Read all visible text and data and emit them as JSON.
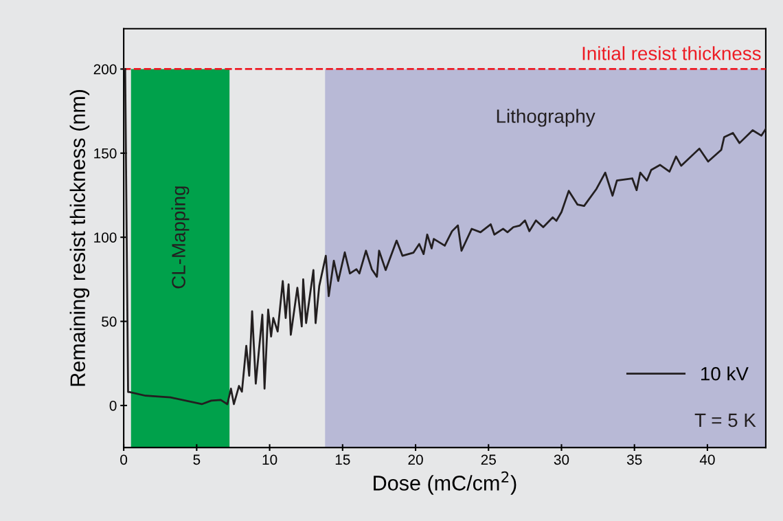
{
  "chart_data": {
    "type": "line",
    "xlabel": "Dose (mC/cm$^{2}$)",
    "ylabel": "Remaining resist thickness (nm)",
    "xlim": [
      0,
      44
    ],
    "ylim": [
      -25,
      224
    ],
    "xticks": [
      0,
      5,
      10,
      15,
      20,
      25,
      30,
      35,
      40
    ],
    "yticks": [
      0,
      50,
      100,
      150,
      200
    ],
    "grid": false,
    "legend": "bottom right",
    "marker": "none",
    "line_style": "solid",
    "series": [
      {
        "name": "10 kV",
        "color": "#231f20",
        "x": [
          0.1,
          0.3,
          0.4,
          1.5,
          3.2,
          5.35,
          6.0,
          6.65,
          7.1,
          7.35,
          7.55,
          7.9,
          8.1,
          8.4,
          8.6,
          8.8,
          9.05,
          9.5,
          9.65,
          9.9,
          10.1,
          10.25,
          10.55,
          10.9,
          11.1,
          11.3,
          11.45,
          11.9,
          12.2,
          12.3,
          12.5,
          13.0,
          13.15,
          13.4,
          13.85,
          14.05,
          14.4,
          14.7,
          15.15,
          15.5,
          15.95,
          16.15,
          16.6,
          17.0,
          17.35,
          17.5,
          17.95,
          18.7,
          19.1,
          19.85,
          20.25,
          20.55,
          20.8,
          21.1,
          21.25,
          22.0,
          22.5,
          22.9,
          23.15,
          23.85,
          24.45,
          25.15,
          25.4,
          26.0,
          26.3,
          26.7,
          27.15,
          27.5,
          27.8,
          28.25,
          28.75,
          29.4,
          29.65,
          30.0,
          30.5,
          31.1,
          31.55,
          32.4,
          33.0,
          33.5,
          33.8,
          34.85,
          35.15,
          35.4,
          35.85,
          36.15,
          36.75,
          37.4,
          37.85,
          38.2,
          39.45,
          40.05,
          40.95,
          41.15,
          41.75,
          42.2,
          43.1,
          43.7,
          44.0
        ],
        "values": [
          200,
          8,
          8,
          5.8,
          4.8,
          0.8,
          2.9,
          3.3,
          0.8,
          10,
          0.8,
          11.6,
          8.2,
          35.5,
          17.7,
          56,
          13,
          54,
          10,
          57,
          41,
          52,
          44,
          74,
          52,
          72,
          42,
          70,
          47,
          75,
          49,
          80.5,
          49,
          71,
          89,
          65,
          86,
          74,
          91,
          78.5,
          81,
          78.5,
          92,
          81,
          76.5,
          92,
          80.5,
          98,
          89,
          90.8,
          96,
          90,
          101.6,
          93.4,
          99,
          95,
          103.6,
          107,
          92,
          105,
          103,
          107.7,
          101.6,
          105,
          103,
          106,
          107,
          110,
          103.6,
          110,
          106,
          111.8,
          109.8,
          115,
          127.6,
          119.4,
          118.6,
          128.8,
          138.4,
          124.7,
          133.7,
          135,
          128,
          138.4,
          133.7,
          140,
          143,
          139,
          148,
          142.5,
          152.7,
          145,
          152,
          159.5,
          162,
          156,
          163.6,
          160.4,
          164.4
        ]
      }
    ],
    "ref_lines": [
      {
        "axis": "y",
        "value": 200,
        "label": "Initial resist thickness",
        "color": "#ed1c24",
        "line_style": "dashed"
      }
    ],
    "bands": [
      {
        "axis": "x",
        "from": 0.5,
        "to": 7.25,
        "label": "CL-Mapping",
        "color": "#00a14b"
      },
      {
        "axis": "x",
        "from": 13.8,
        "to": 44,
        "label": "Lithography",
        "color": "#b8b9d6"
      }
    ],
    "annotations": [
      "T = 5 K"
    ]
  }
}
